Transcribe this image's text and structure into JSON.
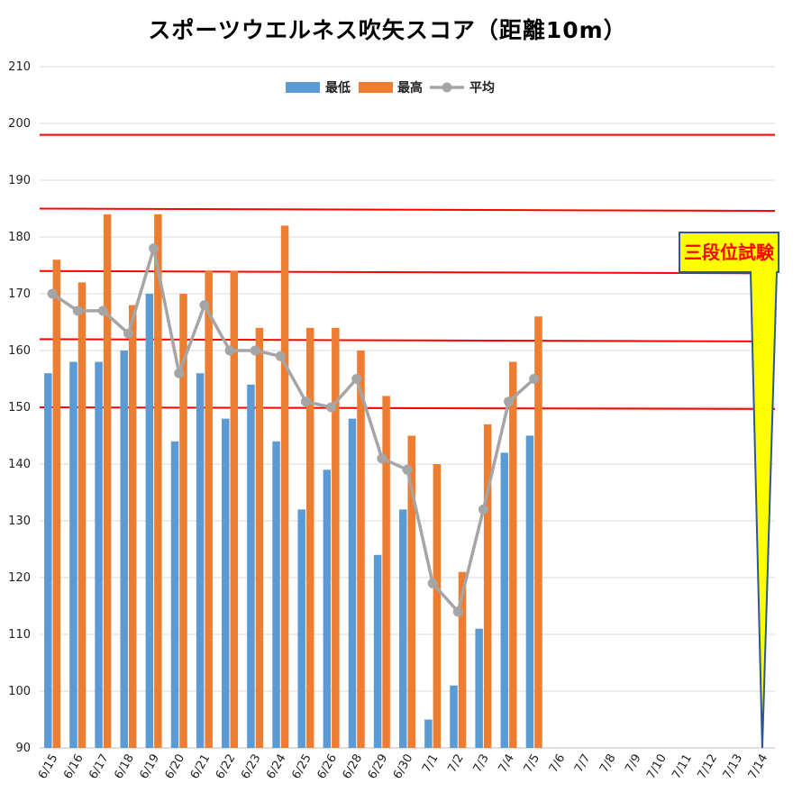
{
  "chart_data": {
    "type": "bar",
    "title": "スポーツウエルネス吹矢スコア（距離10m）",
    "xlabel": "",
    "ylabel": "",
    "ylim": [
      90,
      210
    ],
    "yticks": [
      90,
      100,
      110,
      120,
      130,
      140,
      150,
      160,
      170,
      180,
      190,
      200,
      210
    ],
    "grid": true,
    "legend_position": "top-center",
    "categories": [
      "6/15",
      "6/16",
      "6/17",
      "6/18",
      "6/19",
      "6/20",
      "6/21",
      "6/22",
      "6/23",
      "6/24",
      "6/25",
      "6/26",
      "6/28",
      "6/29",
      "6/30",
      "7/1",
      "7/2",
      "7/3",
      "7/4",
      "7/5",
      "7/6",
      "7/7",
      "7/8",
      "7/9",
      "7/10",
      "7/11",
      "7/12",
      "7/13",
      "7/14"
    ],
    "series": [
      {
        "name": "最低",
        "type": "bar",
        "color": "#5b9bd5",
        "values": [
          156,
          158,
          158,
          160,
          170,
          144,
          156,
          148,
          154,
          144,
          132,
          139,
          148,
          124,
          132,
          95,
          101,
          111,
          142,
          145,
          null,
          null,
          null,
          null,
          null,
          null,
          null,
          null,
          null
        ]
      },
      {
        "name": "最高",
        "type": "bar",
        "color": "#ed7d31",
        "values": [
          176,
          172,
          184,
          168,
          184,
          170,
          174,
          174,
          164,
          182,
          164,
          164,
          160,
          152,
          145,
          140,
          121,
          147,
          158,
          166,
          null,
          null,
          null,
          null,
          null,
          null,
          null,
          null,
          null
        ]
      },
      {
        "name": "平均",
        "type": "line",
        "color": "#a5a5a5",
        "values": [
          170,
          167,
          167,
          163,
          178,
          156,
          168,
          160,
          160,
          159,
          151,
          150,
          155,
          141,
          139,
          119,
          114,
          132,
          151,
          155,
          null,
          null,
          null,
          null,
          null,
          null,
          null,
          null,
          null
        ]
      }
    ],
    "reference_lines": [
      {
        "value_start": 198,
        "value_end": 198,
        "color": "#ff0000"
      },
      {
        "value_start": 185,
        "value_end": 184.6,
        "color": "#ff0000"
      },
      {
        "value_start": 174,
        "value_end": 173.6,
        "color": "#ff0000"
      },
      {
        "value_start": 162,
        "value_end": 161.6,
        "color": "#ff0000"
      },
      {
        "value_start": 150,
        "value_end": 149.7,
        "color": "#ff0000"
      }
    ],
    "annotation": {
      "text": "三段位試験",
      "category": "7/14",
      "value": 90,
      "fill": "#ffff00",
      "text_color": "#ff0000"
    }
  }
}
